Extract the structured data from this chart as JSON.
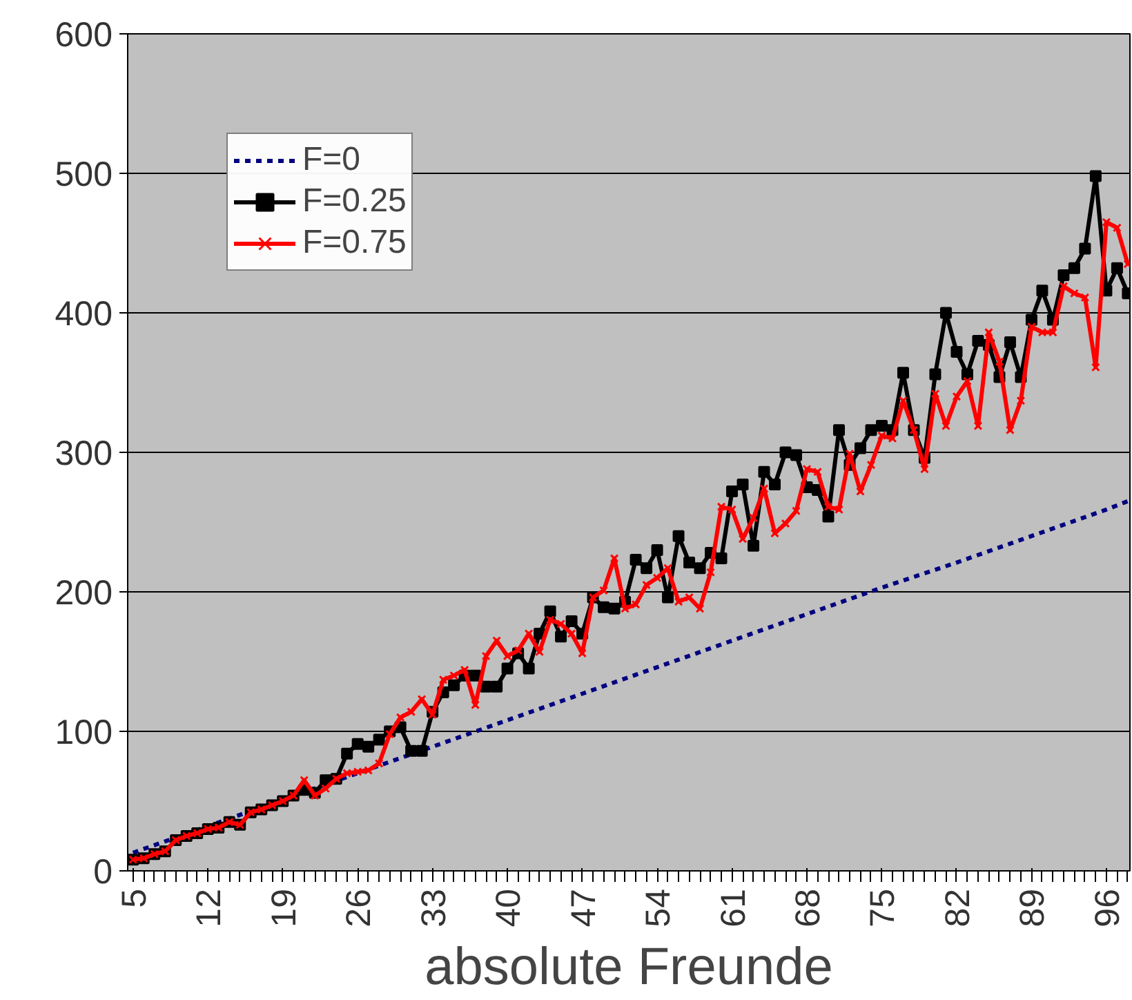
{
  "chart_data": {
    "type": "line",
    "xlabel": "absolute Freunde",
    "xlim": [
      4.5,
      98.2
    ],
    "xticks": [
      5,
      12,
      19,
      26,
      33,
      40,
      47,
      54,
      61,
      68,
      75,
      82,
      89,
      96
    ],
    "ylim": [
      0,
      600
    ],
    "yticks": [
      0,
      100,
      200,
      300,
      400,
      500,
      600
    ],
    "grid": "y",
    "legend": "top left",
    "series": [
      {
        "name": "F=0",
        "color": "#000080",
        "marker": "none",
        "line_style": "dashed",
        "x": [
          5,
          12,
          19,
          26,
          33,
          40,
          47,
          54,
          61,
          68,
          75,
          82,
          89,
          96,
          98
        ],
        "values": [
          13,
          32,
          51,
          70,
          89,
          108,
          127,
          146,
          165,
          184,
          203,
          221,
          240,
          259,
          265
        ]
      },
      {
        "name": "F=0.25",
        "color": "#000000",
        "marker": "square",
        "line_style": "solid",
        "x": [
          5,
          6,
          7,
          8,
          9,
          10,
          11,
          12,
          13,
          14,
          15,
          16,
          17,
          18,
          19,
          20,
          21,
          22,
          23,
          24,
          25,
          26,
          27,
          28,
          29,
          30,
          31,
          32,
          33,
          34,
          35,
          36,
          37,
          38,
          39,
          40,
          41,
          42,
          43,
          44,
          45,
          46,
          47,
          48,
          49,
          50,
          51,
          52,
          53,
          54,
          55,
          56,
          57,
          58,
          59,
          60,
          61,
          62,
          63,
          64,
          65,
          66,
          67,
          68,
          69,
          70,
          71,
          72,
          73,
          74,
          75,
          76,
          77,
          78,
          79,
          80,
          81,
          82,
          83,
          84,
          85,
          86,
          87,
          88,
          89,
          90,
          91,
          92,
          93,
          94,
          95,
          96,
          97,
          98
        ],
        "values": [
          8,
          9,
          12,
          14,
          22,
          25,
          27,
          30,
          31,
          35,
          33,
          42,
          44,
          47,
          50,
          54,
          58,
          56,
          65,
          66,
          84,
          91,
          89,
          94,
          100,
          103,
          86,
          86,
          114,
          128,
          133,
          140,
          140,
          132,
          132,
          145,
          156,
          145,
          170,
          186,
          168,
          179,
          170,
          196,
          189,
          188,
          193,
          223,
          217,
          230,
          196,
          240,
          221,
          217,
          228,
          224,
          272,
          277,
          233,
          286,
          277,
          300,
          298,
          275,
          273,
          254,
          316,
          291,
          303,
          316,
          319,
          316,
          357,
          316,
          296,
          356,
          400,
          372,
          356,
          380,
          377,
          354,
          379,
          354,
          395,
          416,
          395,
          427,
          432,
          446,
          498,
          416,
          432,
          414
        ]
      },
      {
        "name": "F=0.75",
        "color": "#ff0000",
        "marker": "cross",
        "line_style": "solid",
        "x": [
          5,
          6,
          7,
          8,
          9,
          10,
          11,
          12,
          13,
          14,
          15,
          16,
          17,
          18,
          19,
          20,
          21,
          22,
          23,
          24,
          25,
          26,
          27,
          28,
          29,
          30,
          31,
          32,
          33,
          34,
          35,
          36,
          37,
          38,
          39,
          40,
          41,
          42,
          43,
          44,
          45,
          46,
          47,
          48,
          49,
          50,
          51,
          52,
          53,
          54,
          55,
          56,
          57,
          58,
          59,
          60,
          61,
          62,
          63,
          64,
          65,
          66,
          67,
          68,
          69,
          70,
          71,
          72,
          73,
          74,
          75,
          76,
          77,
          78,
          79,
          80,
          81,
          82,
          83,
          84,
          85,
          86,
          87,
          88,
          89,
          90,
          91,
          92,
          93,
          94,
          95,
          96,
          97,
          98
        ],
        "values": [
          8,
          9,
          12,
          14,
          22,
          25,
          27,
          30,
          31,
          35,
          33,
          42,
          44,
          47,
          50,
          54,
          65,
          54,
          59,
          66,
          70,
          71,
          72,
          77,
          98,
          110,
          114,
          123,
          112,
          137,
          140,
          144,
          119,
          154,
          165,
          154,
          158,
          170,
          157,
          180,
          177,
          170,
          156,
          196,
          201,
          224,
          188,
          191,
          205,
          210,
          217,
          193,
          196,
          188,
          214,
          261,
          259,
          238,
          253,
          274,
          242,
          249,
          258,
          288,
          286,
          261,
          259,
          299,
          272,
          291,
          312,
          310,
          337,
          316,
          288,
          342,
          319,
          340,
          351,
          319,
          386,
          365,
          316,
          337,
          390,
          386,
          386,
          419,
          414,
          411,
          361,
          465,
          461,
          435
        ]
      }
    ]
  }
}
